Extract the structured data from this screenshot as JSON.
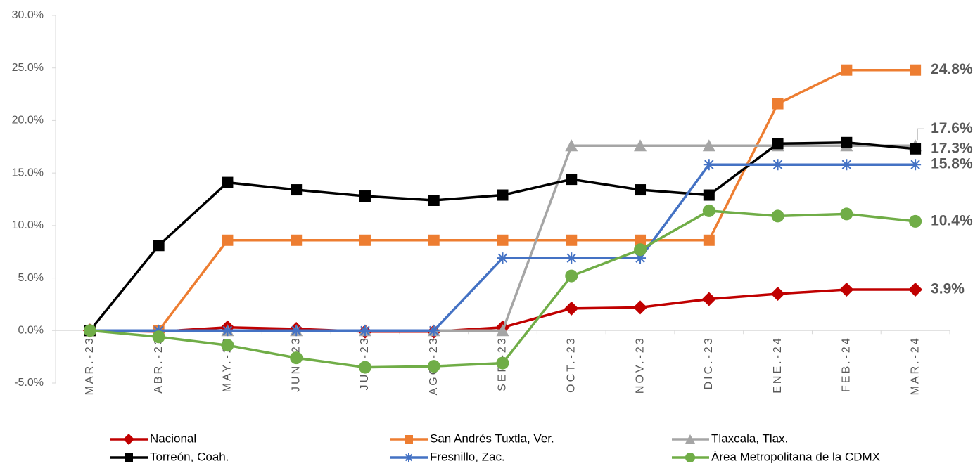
{
  "chart_data": {
    "type": "line",
    "categories": [
      "MAR.-23",
      "ABR.-23",
      "MAY.-23",
      "JUN.-23",
      "JUL.-23",
      "AGO.-23",
      "SEP.-23",
      "OCT.-23",
      "NOV.-23",
      "DIC.-23",
      "ENE.-24",
      "FEB.-24",
      "MAR.-24"
    ],
    "ylim": [
      -5,
      30
    ],
    "yticks": [
      {
        "value": -5,
        "label": "-5.0%"
      },
      {
        "value": 0,
        "label": "0.0%"
      },
      {
        "value": 5,
        "label": "5.0%"
      },
      {
        "value": 10,
        "label": "10.0%"
      },
      {
        "value": 15,
        "label": "15.0%"
      },
      {
        "value": 20,
        "label": "20.0%"
      },
      {
        "value": 25,
        "label": "25.0%"
      },
      {
        "value": 30,
        "label": "30.0%"
      }
    ],
    "series": [
      {
        "name": "Nacional",
        "color": "#c00000",
        "marker": "diamond",
        "label_color": "#c00000",
        "end_label": "3.9%",
        "values": [
          0,
          -0.1,
          0.3,
          0.15,
          -0.1,
          -0.1,
          0.3,
          2.1,
          2.2,
          3.0,
          3.5,
          3.9,
          3.9
        ]
      },
      {
        "name": "San Andrés Tuxtla, Ver.",
        "color": "#ed7d31",
        "marker": "square",
        "label_color": "#c55a11",
        "end_label": "24.8%",
        "values": [
          0,
          0,
          8.6,
          8.6,
          8.6,
          8.6,
          8.6,
          8.6,
          8.6,
          8.6,
          21.6,
          24.8,
          24.8
        ]
      },
      {
        "name": "Tlaxcala, Tlax.",
        "color": "#a5a5a5",
        "marker": "triangle",
        "label_color": "#7f7f7f",
        "end_label": "17.6%",
        "values": [
          0,
          0,
          0,
          0,
          0,
          0,
          0,
          17.6,
          17.6,
          17.6,
          17.6,
          17.6,
          17.6
        ]
      },
      {
        "name": "Torreón, Coah.",
        "color": "#000000",
        "marker": "square",
        "label_color": "#000000",
        "end_label": "17.3%",
        "values": [
          0,
          8.1,
          14.1,
          13.4,
          12.8,
          12.4,
          12.9,
          14.4,
          13.4,
          12.9,
          17.8,
          17.9,
          17.3
        ]
      },
      {
        "name": "Fresnillo, Zac.",
        "color": "#4472c4",
        "marker": "star",
        "label_color": "#2f5597",
        "end_label": "15.8%",
        "values": [
          0,
          0,
          0,
          0,
          0,
          0,
          6.9,
          6.9,
          6.9,
          15.8,
          15.8,
          15.8,
          15.8
        ]
      },
      {
        "name": "Área Metropolitana de la CDMX",
        "color": "#70ad47",
        "marker": "circle",
        "label_color": "#548235",
        "end_label": "10.4%",
        "values": [
          0,
          -0.6,
          -1.4,
          -2.6,
          -3.5,
          -3.4,
          -3.1,
          5.2,
          7.7,
          11.4,
          10.9,
          11.1,
          10.4
        ]
      }
    ]
  }
}
